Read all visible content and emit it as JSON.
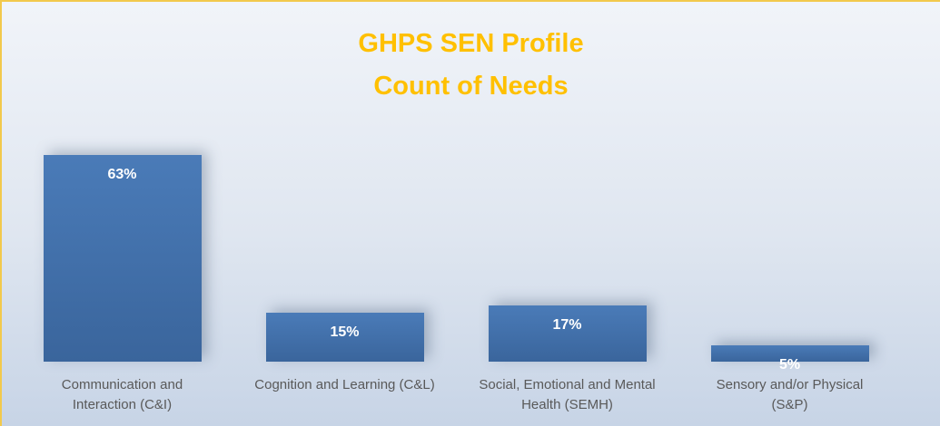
{
  "chart_data": {
    "type": "bar",
    "title": [
      "GHPS SEN Profile",
      "Count of Needs"
    ],
    "categories": [
      "Communication and Interaction (C&I)",
      "Cognition and Learning (C&L)",
      "Social, Emotional and Mental Health (SEMH)",
      "Sensory and/or Physical (S&P)"
    ],
    "values": [
      63,
      15,
      17,
      5
    ],
    "value_labels": [
      "63%",
      "15%",
      "17%",
      "5%"
    ],
    "color": "#4a7bb8",
    "title_color": "#ffc000"
  }
}
